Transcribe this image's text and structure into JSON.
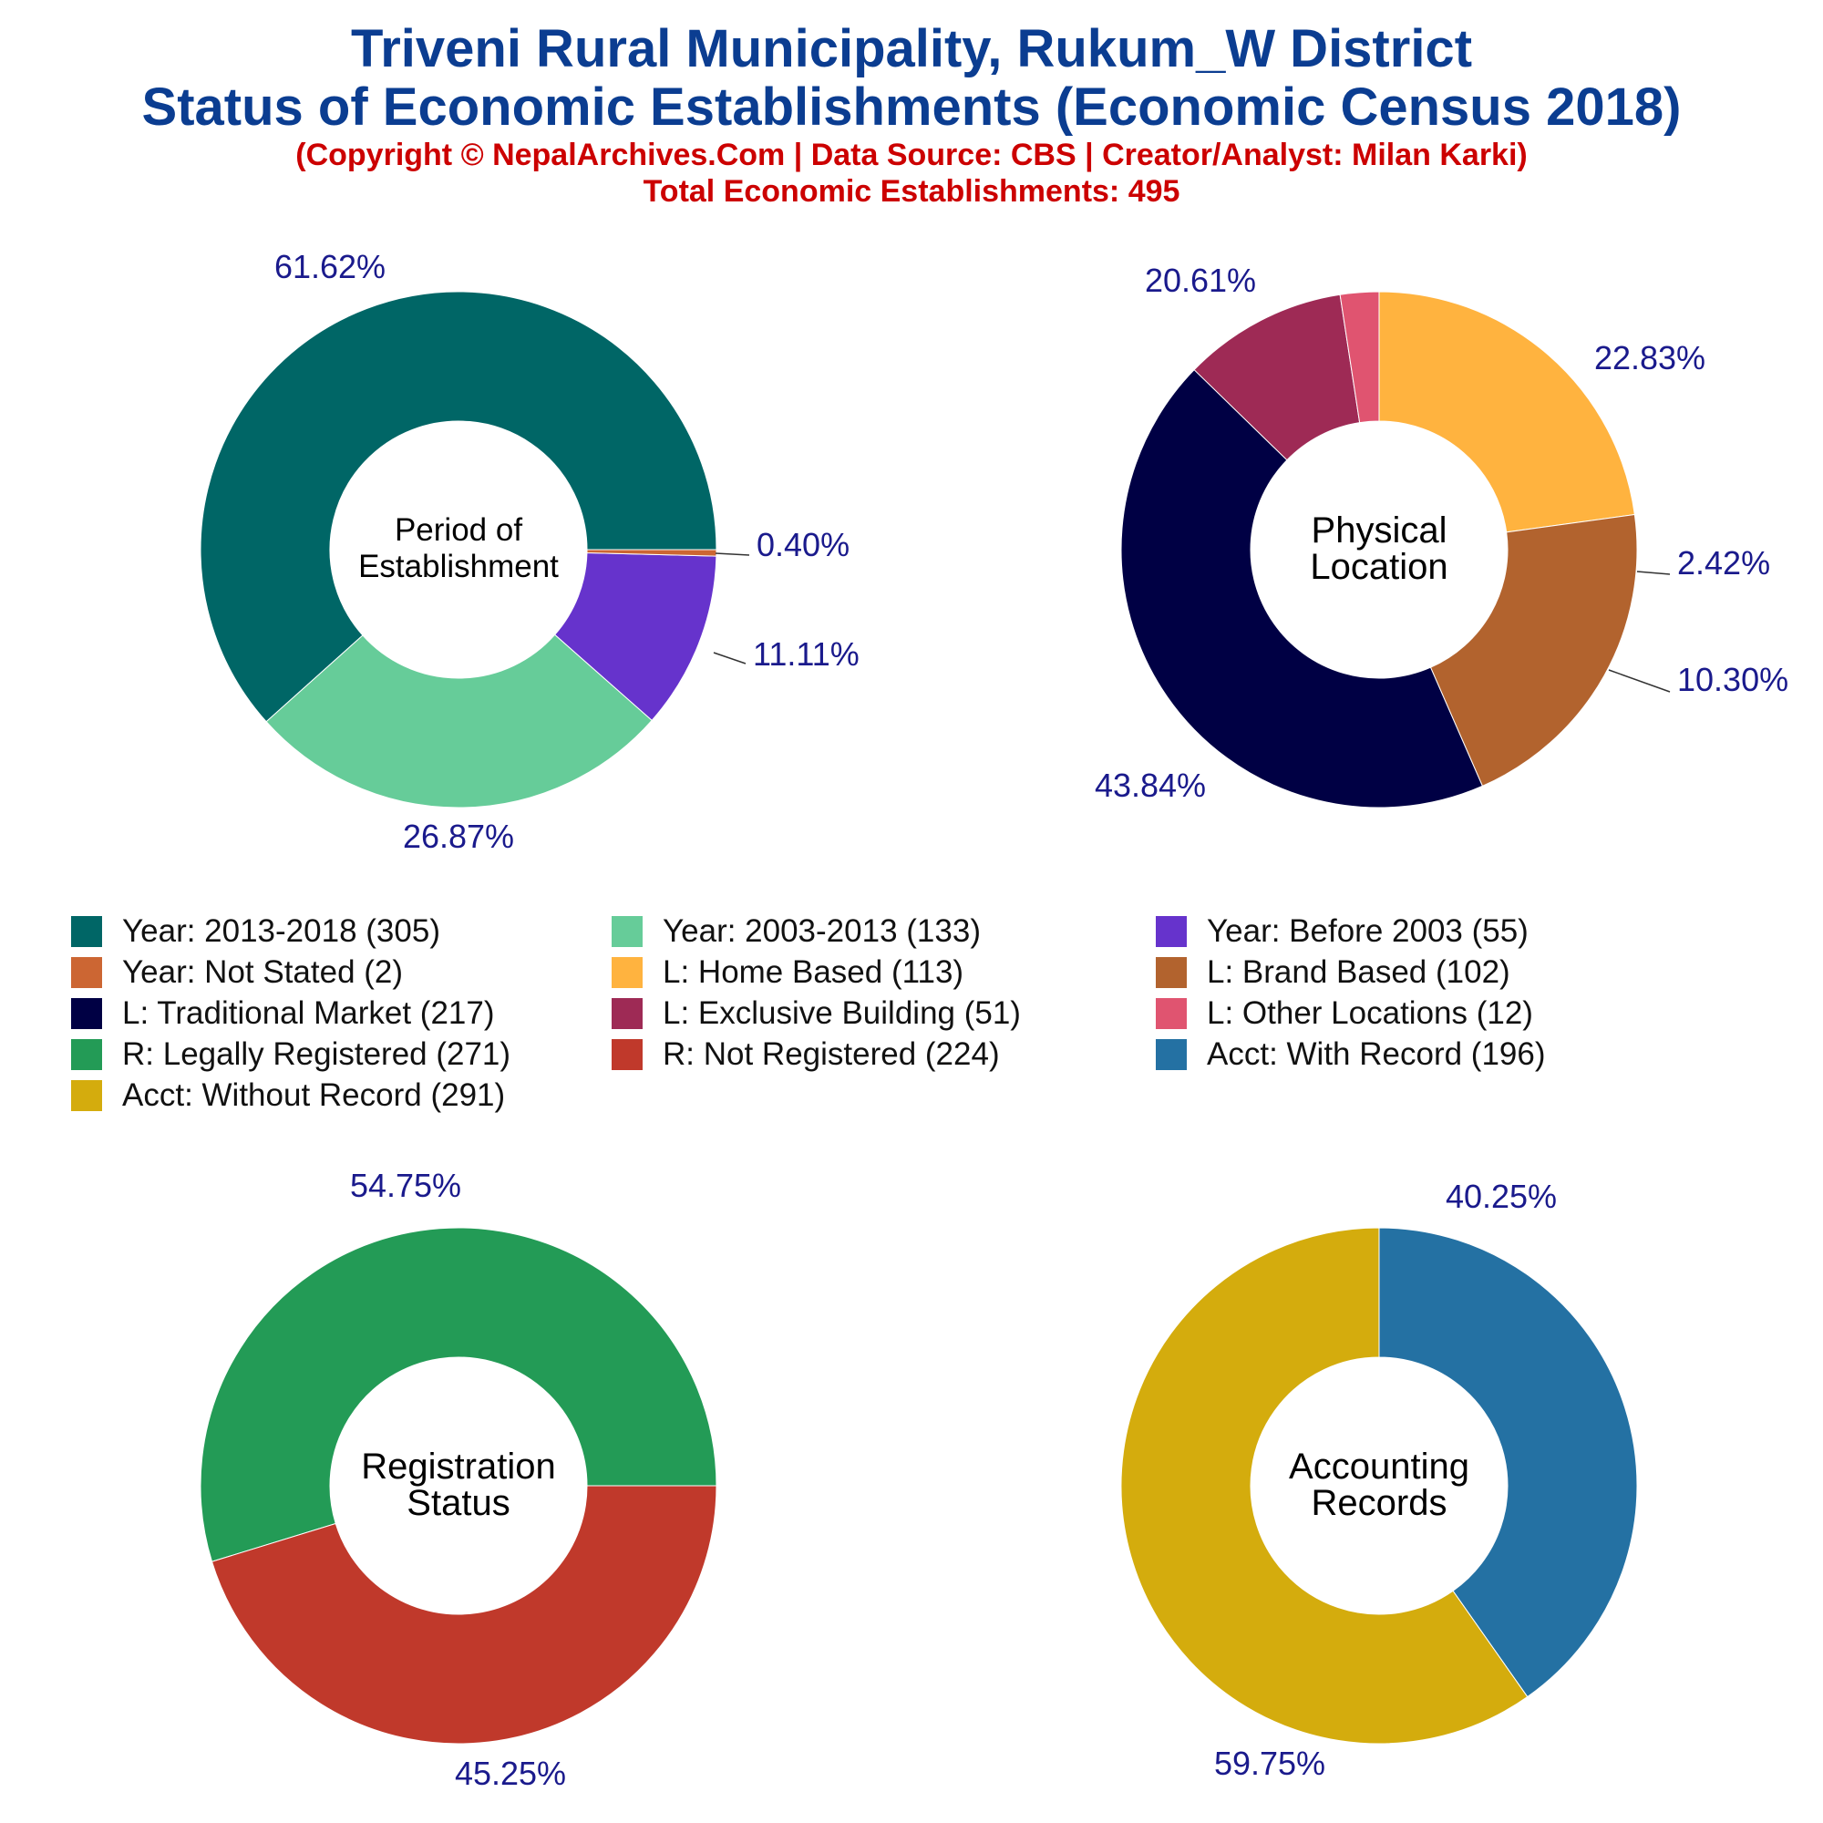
{
  "header": {
    "title_line1": "Triveni Rural Municipality, Rukum_W District",
    "title_line2": "Status of Economic Establishments (Economic Census 2018)",
    "copyright": "(Copyright © NepalArchives.Com | Data Source: CBS | Creator/Analyst: Milan Karki)",
    "total": "Total Economic Establishments: 495"
  },
  "chart_data": [
    {
      "type": "pie",
      "center_label": [
        "Period of",
        "Establishment"
      ],
      "slices": [
        {
          "label": "Year: 2013-2018",
          "count": 305,
          "percent": 61.62,
          "color": "#006666"
        },
        {
          "label": "Year: 2003-2013",
          "count": 133,
          "percent": 26.87,
          "color": "#66CC99"
        },
        {
          "label": "Year: Before 2003",
          "count": 55,
          "percent": 11.11,
          "color": "#6633CC"
        },
        {
          "label": "Year: Not Stated",
          "count": 2,
          "percent": 0.4,
          "color": "#CC6633"
        }
      ]
    },
    {
      "type": "pie",
      "center_label": [
        "Physical",
        "Location"
      ],
      "slices": [
        {
          "label": "L: Home Based",
          "count": 113,
          "percent": 22.83,
          "color": "#FFB33F"
        },
        {
          "label": "L: Brand Based",
          "count": 102,
          "percent": 20.61,
          "color": "#B2632E"
        },
        {
          "label": "L: Traditional Market",
          "count": 217,
          "percent": 43.84,
          "color": "#000044"
        },
        {
          "label": "L: Exclusive Building",
          "count": 51,
          "percent": 10.3,
          "color": "#9E2A55"
        },
        {
          "label": "L: Other Locations",
          "count": 12,
          "percent": 2.42,
          "color": "#E05470"
        }
      ]
    },
    {
      "type": "pie",
      "center_label": [
        "Registration",
        "Status"
      ],
      "slices": [
        {
          "label": "R: Legally Registered",
          "count": 271,
          "percent": 54.75,
          "color": "#239B56"
        },
        {
          "label": "R: Not Registered",
          "count": 224,
          "percent": 45.25,
          "color": "#C0392B"
        }
      ]
    },
    {
      "type": "pie",
      "center_label": [
        "Accounting",
        "Records"
      ],
      "slices": [
        {
          "label": "Acct: With Record",
          "count": 196,
          "percent": 40.25,
          "color": "#2471A3"
        },
        {
          "label": "Acct: Without Record",
          "count": 291,
          "percent": 59.75,
          "color": "#D4AC0D"
        }
      ]
    }
  ],
  "legend": [
    {
      "label": "Year: 2013-2018 (305)",
      "color": "#006666"
    },
    {
      "label": "Year: 2003-2013 (133)",
      "color": "#66CC99"
    },
    {
      "label": "Year: Before 2003 (55)",
      "color": "#6633CC"
    },
    {
      "label": "Year: Not Stated (2)",
      "color": "#CC6633"
    },
    {
      "label": "L: Home Based (113)",
      "color": "#FFB33F"
    },
    {
      "label": "L: Brand Based (102)",
      "color": "#B2632E"
    },
    {
      "label": "L: Traditional Market (217)",
      "color": "#000044"
    },
    {
      "label": "L: Exclusive Building (51)",
      "color": "#9E2A55"
    },
    {
      "label": "L: Other Locations (12)",
      "color": "#E05470"
    },
    {
      "label": "R: Legally Registered (271)",
      "color": "#239B56"
    },
    {
      "label": "R: Not Registered (224)",
      "color": "#C0392B"
    },
    {
      "label": "Acct: With Record (196)",
      "color": "#2471A3"
    },
    {
      "label": "Acct: Without Record (291)",
      "color": "#D4AC0D"
    }
  ]
}
